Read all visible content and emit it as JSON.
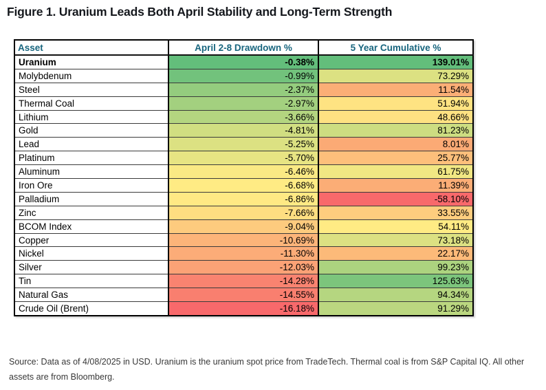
{
  "figure": {
    "title": "Figure 1. Uranium Leads Both April Stability and Long-Term Strength"
  },
  "table": {
    "columns": [
      "Asset",
      "April 2-8 Drawdown %",
      "5 Year Cumulative %"
    ],
    "header_text_color": "#17657E",
    "rows": [
      {
        "asset": "Uranium",
        "drawdown": "-0.38%",
        "drawdown_color": "#63BE7B",
        "cumulative": "139.01%",
        "cumulative_color": "#63BE7B",
        "bold": true
      },
      {
        "asset": "Molybdenum",
        "drawdown": "-0.99%",
        "drawdown_color": "#72C27C",
        "cumulative": "73.29%",
        "cumulative_color": "#DCE182",
        "bold": false
      },
      {
        "asset": "Steel",
        "drawdown": "-2.37%",
        "drawdown_color": "#94CC7E",
        "cumulative": "11.54%",
        "cumulative_color": "#FBAE76",
        "bold": false
      },
      {
        "asset": "Thermal Coal",
        "drawdown": "-2.97%",
        "drawdown_color": "#A3D07F",
        "cumulative": "51.94%",
        "cumulative_color": "#FEE382",
        "bold": false
      },
      {
        "asset": "Lithium",
        "drawdown": "-3.66%",
        "drawdown_color": "#B4D580",
        "cumulative": "48.66%",
        "cumulative_color": "#FEE182",
        "bold": false
      },
      {
        "asset": "Gold",
        "drawdown": "-4.81%",
        "drawdown_color": "#D1DE81",
        "cumulative": "81.23%",
        "cumulative_color": "#CDDD81",
        "bold": false
      },
      {
        "asset": "Lead",
        "drawdown": "-5.25%",
        "drawdown_color": "#DCE182",
        "cumulative": "8.01%",
        "cumulative_color": "#FBAA75",
        "bold": false
      },
      {
        "asset": "Platinum",
        "drawdown": "-5.70%",
        "drawdown_color": "#E7E483",
        "cumulative": "25.77%",
        "cumulative_color": "#FDBF7B",
        "bold": false
      },
      {
        "asset": "Aluminum",
        "drawdown": "-6.46%",
        "drawdown_color": "#FAE984",
        "cumulative": "61.75%",
        "cumulative_color": "#F1E783",
        "bold": false
      },
      {
        "asset": "Iron Ore",
        "drawdown": "-6.68%",
        "drawdown_color": "#FFEB84",
        "cumulative": "11.39%",
        "cumulative_color": "#FBAD76",
        "bold": false
      },
      {
        "asset": "Palladium",
        "drawdown": "-6.86%",
        "drawdown_color": "#FFE984",
        "cumulative": "-58.10%",
        "cumulative_color": "#F8696B",
        "bold": false
      },
      {
        "asset": "Zinc",
        "drawdown": "-7.66%",
        "drawdown_color": "#FEDE81",
        "cumulative": "33.55%",
        "cumulative_color": "#FECD7E",
        "bold": false
      },
      {
        "asset": "BCOM Index",
        "drawdown": "-9.04%",
        "drawdown_color": "#FDCB7E",
        "cumulative": "54.11%",
        "cumulative_color": "#FFEB84",
        "bold": false
      },
      {
        "asset": "Copper",
        "drawdown": "-10.69%",
        "drawdown_color": "#FCB479",
        "cumulative": "73.18%",
        "cumulative_color": "#DCE182",
        "bold": false
      },
      {
        "asset": "Nickel",
        "drawdown": "-11.30%",
        "drawdown_color": "#FCAC78",
        "cumulative": "22.17%",
        "cumulative_color": "#FCBA79",
        "bold": false
      },
      {
        "asset": "Silver",
        "drawdown": "-12.03%",
        "drawdown_color": "#FBA276",
        "cumulative": "99.23%",
        "cumulative_color": "#ACD37F",
        "bold": false
      },
      {
        "asset": "Tin",
        "drawdown": "-14.28%",
        "drawdown_color": "#F98370",
        "cumulative": "125.63%",
        "cumulative_color": "#7CC57C",
        "bold": false
      },
      {
        "asset": "Natural Gas",
        "drawdown": "-14.55%",
        "drawdown_color": "#F97F6F",
        "cumulative": "94.34%",
        "cumulative_color": "#B5D680",
        "bold": false
      },
      {
        "asset": "Crude Oil (Brent)",
        "drawdown": "-16.18%",
        "drawdown_color": "#F8696B",
        "cumulative": "91.29%",
        "cumulative_color": "#BBD780",
        "bold": false
      }
    ]
  },
  "footer": {
    "source": "Source: Data as of 4/08/2025 in USD. Uranium is the uranium spot price from TradeTech. Thermal coal is from S&P Capital IQ. All other assets are from Bloomberg."
  },
  "chart_data": {
    "type": "heatmap",
    "title": "Figure 1. Uranium Leads Both April Stability and Long-Term Strength",
    "categories": [
      "Uranium",
      "Molybdenum",
      "Steel",
      "Thermal Coal",
      "Lithium",
      "Gold",
      "Lead",
      "Platinum",
      "Aluminum",
      "Iron Ore",
      "Palladium",
      "Zinc",
      "BCOM Index",
      "Copper",
      "Nickel",
      "Silver",
      "Tin",
      "Natural Gas",
      "Crude Oil (Brent)"
    ],
    "series": [
      {
        "name": "April 2-8 Drawdown %",
        "values": [
          -0.38,
          -0.99,
          -2.37,
          -2.97,
          -3.66,
          -4.81,
          -5.25,
          -5.7,
          -6.46,
          -6.68,
          -6.86,
          -7.66,
          -9.04,
          -10.69,
          -11.3,
          -12.03,
          -14.28,
          -14.55,
          -16.18
        ]
      },
      {
        "name": "5 Year Cumulative %",
        "values": [
          139.01,
          73.29,
          11.54,
          51.94,
          48.66,
          81.23,
          8.01,
          25.77,
          61.75,
          11.39,
          -58.1,
          33.55,
          54.11,
          73.18,
          22.17,
          99.23,
          125.63,
          94.34,
          91.29
        ]
      }
    ],
    "layout_hints": {
      "sort": "by drawdown descending",
      "value_format": "percent, 2 decimals",
      "first_row_bold": true
    },
    "color_scale": {
      "min_color": "#F8696B",
      "mid_color": "#FFEB84",
      "max_color": "#63BE7B"
    }
  }
}
